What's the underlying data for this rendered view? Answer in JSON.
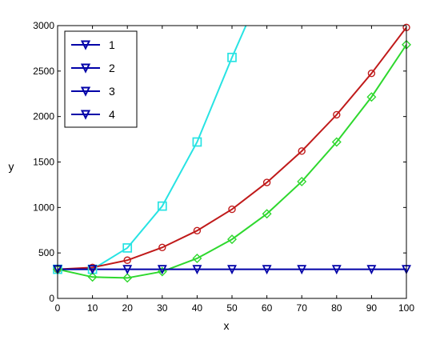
{
  "chart_data": {
    "type": "line",
    "xlabel": "x",
    "ylabel": "y",
    "xlim": [
      0,
      100
    ],
    "ylim": [
      0,
      3000
    ],
    "xticks": [
      0,
      10,
      20,
      30,
      40,
      50,
      60,
      70,
      80,
      90,
      100
    ],
    "yticks": [
      0,
      500,
      1000,
      1500,
      2000,
      2500,
      3000
    ],
    "grid": false,
    "legend": {
      "position": "top-left",
      "entries": [
        "1",
        "2",
        "3",
        "4"
      ],
      "marker": "triangle-down",
      "color": "#0000a8"
    },
    "series": [
      {
        "color": "#27e3e3",
        "marker": "square",
        "x": [
          0,
          10,
          20,
          30,
          40,
          50,
          54
        ],
        "y": [
          320,
          320,
          555,
          1015,
          1720,
          2650,
          3000
        ]
      },
      {
        "color": "#c01a1a",
        "marker": "circle",
        "x": [
          0,
          10,
          20,
          30,
          40,
          50,
          60,
          70,
          80,
          90,
          100
        ],
        "y": [
          320,
          340,
          420,
          560,
          745,
          980,
          1275,
          1620,
          2020,
          2475,
          2980
        ]
      },
      {
        "color": "#2ed82e",
        "marker": "diamond",
        "x": [
          0,
          10,
          20,
          30,
          40,
          50,
          60,
          70,
          80,
          90,
          100
        ],
        "y": [
          320,
          235,
          225,
          295,
          440,
          650,
          930,
          1285,
          1720,
          2215,
          2790
        ]
      },
      {
        "color": "#0000a8",
        "marker": "triangle-down",
        "x": [
          0,
          10,
          20,
          30,
          40,
          50,
          60,
          70,
          80,
          90,
          100
        ],
        "y": [
          320,
          320,
          320,
          320,
          320,
          320,
          320,
          320,
          320,
          320,
          320
        ]
      }
    ]
  }
}
